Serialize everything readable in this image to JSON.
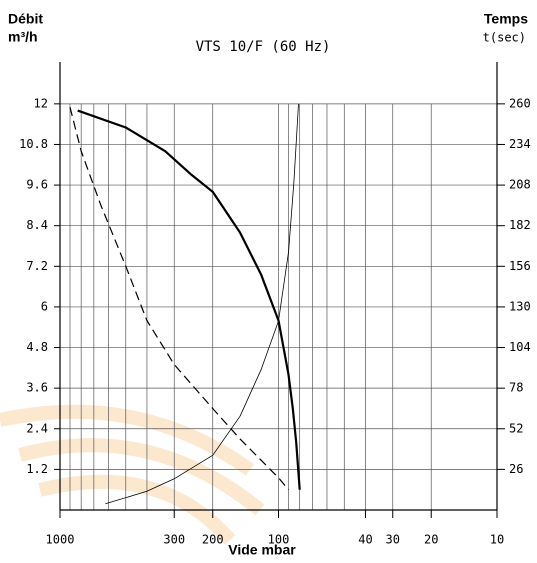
{
  "chart_data": {
    "type": "line",
    "title": "VTS 10/F (60 Hz)",
    "y_label": "Débit",
    "y_unit": "m³/h",
    "y2_label": "Temps",
    "y2_unit": "t(sec)",
    "x_label": "Vide mbar",
    "x_log": true,
    "xlim": [
      1000,
      10
    ],
    "xticks": [
      1000,
      300,
      200,
      100,
      40,
      30,
      20,
      10
    ],
    "xgrid": [
      900,
      800,
      700,
      600,
      500,
      400,
      90,
      80,
      70,
      60,
      50
    ],
    "ylim": [
      0,
      13
    ],
    "yticks": [
      1.2,
      2.4,
      3.6,
      4.8,
      6,
      7.2,
      8.4,
      9.6,
      10.8,
      12
    ],
    "y2lim": [
      0,
      281.67
    ],
    "y2ticks": [
      26,
      52,
      78,
      104,
      130,
      156,
      182,
      208,
      234,
      260
    ],
    "grid": true,
    "series": [
      {
        "color": "#000000",
        "style": "solid",
        "width": 2.2,
        "axis": "y",
        "x": [
          830,
          500,
          330,
          250,
          200,
          150,
          120,
          100,
          90,
          86,
          83,
          80
        ],
        "values": [
          11.8,
          11.3,
          10.6,
          9.9,
          9.4,
          8.2,
          6.95,
          5.6,
          4.0,
          3.0,
          2.0,
          0.6
        ]
      },
      {
        "color": "#000000",
        "style": "dashed",
        "width": 1.2,
        "axis": "y",
        "x": [
          900,
          800,
          650,
          500,
          400,
          300,
          200,
          150,
          100,
          90
        ],
        "values": [
          11.9,
          10.6,
          9.0,
          7.2,
          5.6,
          4.3,
          3.0,
          2.1,
          0.95,
          0.6
        ]
      },
      {
        "color": "#000000",
        "style": "solid",
        "width": 0.8,
        "axis": "y2",
        "x": [
          620,
          400,
          300,
          200,
          150,
          120,
          100,
          90,
          85,
          81
        ],
        "values": [
          4,
          12,
          20,
          35,
          60,
          90,
          121,
          165,
          210,
          260
        ]
      }
    ]
  }
}
